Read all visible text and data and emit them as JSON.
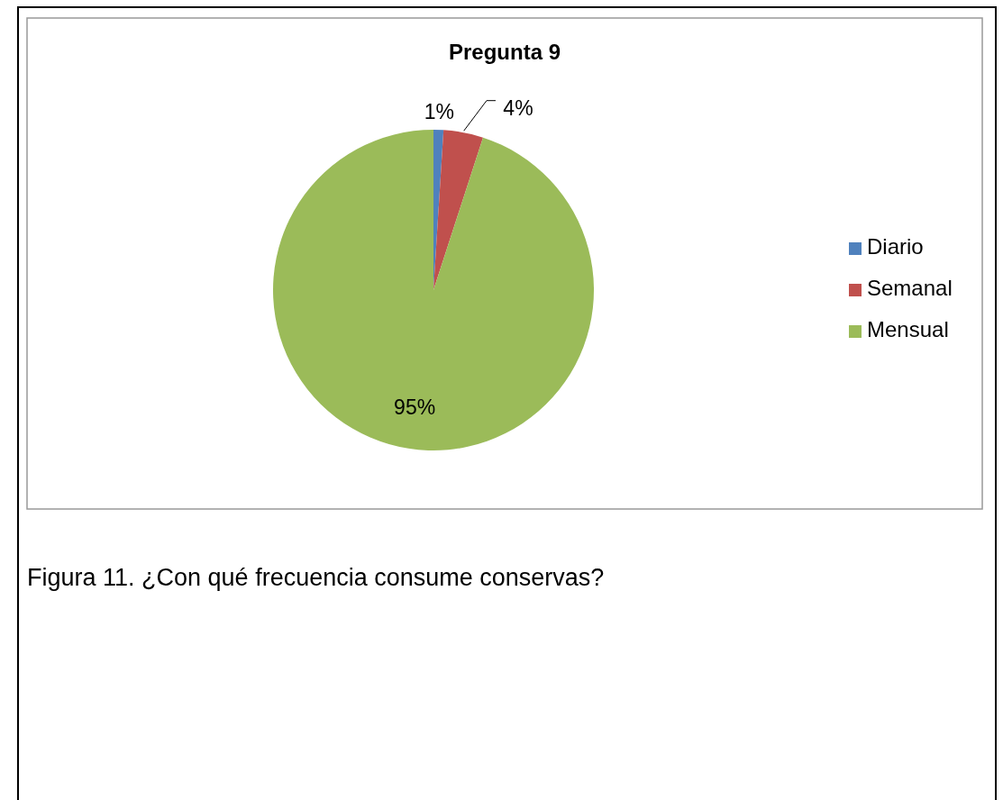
{
  "chart_data": {
    "type": "pie",
    "title": "Pregunta 9",
    "categories": [
      "Diario",
      "Semanal",
      "Mensual"
    ],
    "values": [
      1,
      4,
      95
    ],
    "colors": [
      "#4f81bd",
      "#c0504d",
      "#9bbb59"
    ],
    "value_labels": [
      "1%",
      "4%",
      "95%"
    ],
    "legend": "right",
    "annotations": [
      "Figura 11. ¿Con qué frecuencia consume conservas?"
    ]
  }
}
